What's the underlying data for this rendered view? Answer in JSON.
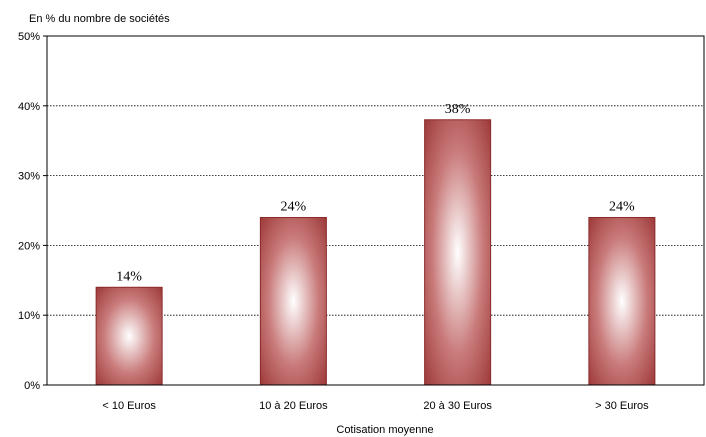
{
  "chart_data": {
    "type": "bar",
    "title": "",
    "ylabel": "En % du nombre de sociétés",
    "xlabel": "Cotisation moyenne",
    "categories": [
      "< 10 Euros",
      "10 à 20 Euros",
      "20 à 30 Euros",
      "> 30 Euros"
    ],
    "values": [
      14,
      24,
      38,
      24
    ],
    "data_labels": [
      "14%",
      "24%",
      "38%",
      "24%"
    ],
    "ylim": [
      0,
      50
    ],
    "yticks": [
      0,
      10,
      20,
      30,
      40,
      50
    ],
    "ytick_labels": [
      "0%",
      "10%",
      "20%",
      "30%",
      "40%",
      "50%"
    ],
    "grid": true,
    "legend": "none",
    "colors": {
      "bar_edge": "#8b2a2a",
      "bar_dark": "#9e3a3a",
      "bar_light": "#ffffff",
      "grid": "#000000",
      "axis": "#000000"
    }
  }
}
